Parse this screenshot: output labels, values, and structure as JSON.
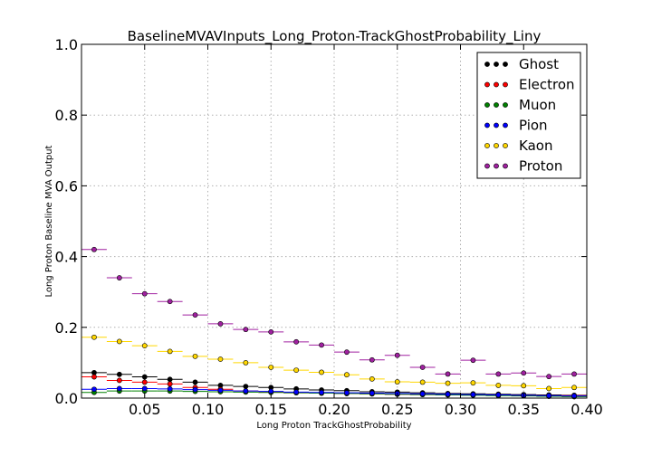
{
  "chart_data": {
    "type": "scatter",
    "title": "BaselineMVAVInputs_Long_Proton-TrackGhostProbability_Liny",
    "xlabel": "Long Proton TrackGhostProbability",
    "ylabel": "Long Proton Baseline MVA Output",
    "xlim": [
      0.0,
      0.4
    ],
    "ylim": [
      0.0,
      1.0
    ],
    "grid": true,
    "legend_position": "top-right",
    "x_ticks": [
      "0.05",
      "0.10",
      "0.15",
      "0.20",
      "0.25",
      "0.30",
      "0.35",
      "0.40"
    ],
    "y_ticks": [
      "0.0",
      "0.2",
      "0.4",
      "0.6",
      "0.8",
      "1.0"
    ],
    "bin_width": 0.02,
    "x": [
      0.01,
      0.03,
      0.05,
      0.07,
      0.09,
      0.11,
      0.13,
      0.15,
      0.17,
      0.19,
      0.21,
      0.23,
      0.25,
      0.27,
      0.29,
      0.31,
      0.33,
      0.35,
      0.37,
      0.39
    ],
    "series": [
      {
        "name": "Ghost",
        "color": "#000000",
        "values": [
          0.072,
          0.067,
          0.06,
          0.053,
          0.045,
          0.036,
          0.033,
          0.03,
          0.026,
          0.023,
          0.021,
          0.018,
          0.017,
          0.015,
          0.013,
          0.012,
          0.011,
          0.01,
          0.009,
          0.008
        ]
      },
      {
        "name": "Electron",
        "color": "#ff0000",
        "values": [
          0.06,
          0.05,
          0.045,
          0.04,
          0.03,
          0.025,
          0.02,
          0.018,
          0.015,
          0.014,
          0.013,
          0.012,
          0.011,
          0.01,
          0.009,
          0.009,
          0.008,
          0.008,
          0.007,
          0.007
        ]
      },
      {
        "name": "Muon",
        "color": "#008000",
        "values": [
          0.016,
          0.02,
          0.02,
          0.02,
          0.019,
          0.018,
          0.017,
          0.016,
          0.015,
          0.014,
          0.013,
          0.012,
          0.011,
          0.01,
          0.009,
          0.008,
          0.007,
          0.006,
          0.005,
          0.004
        ]
      },
      {
        "name": "Pion",
        "color": "#0000ff",
        "values": [
          0.025,
          0.027,
          0.027,
          0.026,
          0.024,
          0.022,
          0.02,
          0.019,
          0.017,
          0.016,
          0.015,
          0.014,
          0.013,
          0.012,
          0.011,
          0.01,
          0.009,
          0.008,
          0.007,
          0.006
        ]
      },
      {
        "name": "Kaon",
        "color": "#ffd700",
        "values": [
          0.172,
          0.16,
          0.148,
          0.132,
          0.118,
          0.11,
          0.1,
          0.087,
          0.079,
          0.073,
          0.066,
          0.054,
          0.046,
          0.045,
          0.042,
          0.043,
          0.036,
          0.035,
          0.027,
          0.03
        ]
      },
      {
        "name": "Proton",
        "color": "#a020a0",
        "values": [
          0.42,
          0.34,
          0.295,
          0.273,
          0.235,
          0.21,
          0.194,
          0.187,
          0.159,
          0.15,
          0.13,
          0.108,
          0.121,
          0.087,
          0.068,
          0.107,
          0.068,
          0.071,
          0.061,
          0.068
        ]
      }
    ]
  }
}
